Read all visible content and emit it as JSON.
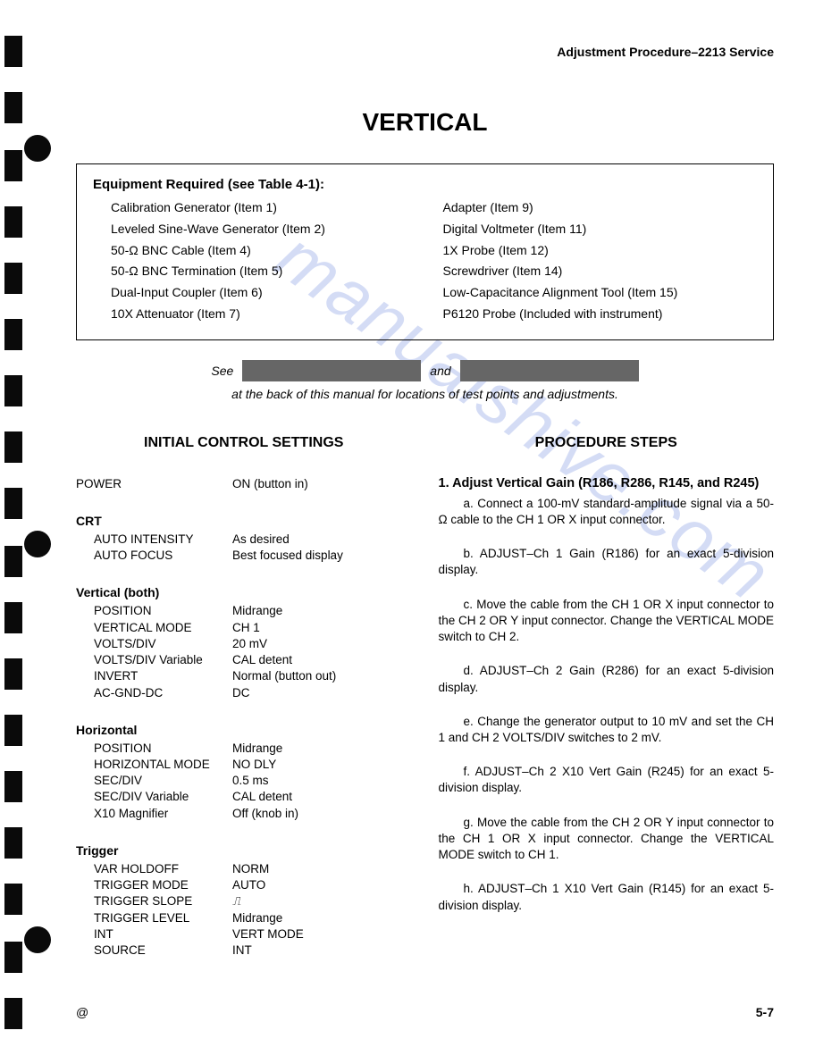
{
  "header": {
    "right": "Adjustment Procedure–2213 Service"
  },
  "title": "VERTICAL",
  "equipment": {
    "heading": "Equipment Required (see Table 4-1):",
    "left": [
      "Calibration Generator (Item 1)",
      "Leveled Sine-Wave Generator (Item 2)",
      "50-Ω BNC Cable (Item 4)",
      "50-Ω BNC Termination (Item 5)",
      "Dual-Input Coupler (Item 6)",
      "10X Attenuator (Item 7)"
    ],
    "right": [
      "Adapter (Item 9)",
      "Digital Voltmeter (Item 11)",
      "1X Probe (Item 12)",
      "Screwdriver (Item 14)",
      "Low-Capacitance Alignment Tool (Item 15)",
      "P6120 Probe (Included with instrument)"
    ]
  },
  "see": {
    "prefix": "See",
    "mid": "and",
    "sub": "at the back of this manual for locations of test points and adjustments."
  },
  "left": {
    "heading": "INITIAL CONTROL SETTINGS",
    "power": {
      "label": "POWER",
      "value": "ON (button in)"
    },
    "crt_heading": "CRT",
    "crt": [
      {
        "label": "AUTO INTENSITY",
        "value": "As desired"
      },
      {
        "label": "AUTO FOCUS",
        "value": "Best focused display"
      }
    ],
    "vertical_heading": "Vertical (both)",
    "vertical": [
      {
        "label": "POSITION",
        "value": "Midrange"
      },
      {
        "label": "VERTICAL MODE",
        "value": "CH 1"
      },
      {
        "label": "VOLTS/DIV",
        "value": "20 mV"
      },
      {
        "label": "VOLTS/DIV Variable",
        "value": "CAL detent"
      },
      {
        "label": "INVERT",
        "value": "Normal (button out)"
      },
      {
        "label": "AC-GND-DC",
        "value": "DC"
      }
    ],
    "horizontal_heading": "Horizontal",
    "horizontal": [
      {
        "label": "POSITION",
        "value": "Midrange"
      },
      {
        "label": "HORIZONTAL MODE",
        "value": "NO DLY"
      },
      {
        "label": "SEC/DIV",
        "value": "0.5 ms"
      },
      {
        "label": "SEC/DIV Variable",
        "value": "CAL detent"
      },
      {
        "label": "X10 Magnifier",
        "value": "Off (knob in)"
      }
    ],
    "trigger_heading": "Trigger",
    "trigger": [
      {
        "label": "VAR HOLDOFF",
        "value": "NORM"
      },
      {
        "label": "TRIGGER MODE",
        "value": "AUTO"
      },
      {
        "label": "TRIGGER SLOPE",
        "value": "⎍"
      },
      {
        "label": "TRIGGER LEVEL",
        "value": "Midrange"
      },
      {
        "label": "INT",
        "value": "VERT MODE"
      },
      {
        "label": "SOURCE",
        "value": "INT"
      }
    ]
  },
  "right": {
    "heading": "PROCEDURE STEPS",
    "step1_title": "1. Adjust Vertical Gain (R186, R286, R145, and R245)",
    "steps": [
      "a. Connect a 100-mV standard-amplitude signal via a 50-Ω cable to the CH 1 OR X input connector.",
      "b. ADJUST–Ch 1 Gain (R186) for an exact 5-division display.",
      "c. Move the cable from the CH 1 OR X input connector to the CH 2 OR Y input connector. Change the VERTICAL MODE switch to CH 2.",
      "d. ADJUST–Ch 2 Gain (R286) for an exact 5-division display.",
      "e. Change the generator output to 10 mV and set the CH 1 and CH 2 VOLTS/DIV switches to 2 mV.",
      "f. ADJUST–Ch 2 X10 Vert Gain (R245) for an exact 5-division display.",
      "g. Move the cable from the CH 2 OR Y input connector to the CH 1 OR X input connector. Change the VERTICAL MODE switch to CH 1.",
      "h. ADJUST–Ch 1 X10 Vert Gain (R145) for an exact 5-division display."
    ]
  },
  "footer": {
    "left": "@",
    "right": "5-7"
  },
  "watermark": "manualshive.com"
}
